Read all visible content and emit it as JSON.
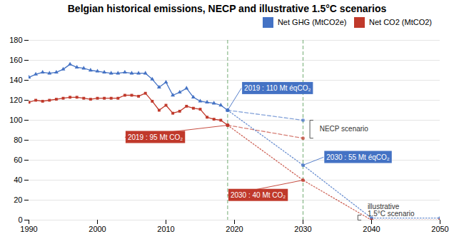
{
  "chart_data": {
    "type": "line",
    "title": "Belgian historical emissions, NECP and illustrative 1.5°C scenarios",
    "xlim": [
      1990,
      2050
    ],
    "ylim": [
      0,
      180
    ],
    "xticks": [
      1990,
      2000,
      2010,
      2020,
      2030,
      2040,
      2050
    ],
    "yticks": [
      0,
      20,
      40,
      60,
      80,
      100,
      120,
      140,
      160,
      180
    ],
    "grid": "y",
    "legend": "upper right",
    "series": [
      {
        "name": "Net GHG (MtCO2e)",
        "color": "#4472C4",
        "marker": "triangle",
        "line_style": "solid",
        "x": [
          1990,
          1991,
          1992,
          1993,
          1994,
          1995,
          1996,
          1997,
          1998,
          1999,
          2000,
          2001,
          2002,
          2003,
          2004,
          2005,
          2006,
          2007,
          2008,
          2009,
          2010,
          2011,
          2012,
          2013,
          2014,
          2015,
          2016,
          2017,
          2018,
          2019
        ],
        "values": [
          143,
          146,
          148,
          147,
          148,
          151,
          156,
          153,
          152,
          150,
          149,
          148,
          147,
          147,
          148,
          147,
          147,
          147,
          141,
          133,
          138,
          125,
          128,
          132,
          123,
          119,
          118,
          117,
          115,
          110
        ]
      },
      {
        "name": "Net CO2 (MtCO2)",
        "color": "#C0392B",
        "marker": "square",
        "line_style": "solid",
        "x": [
          1990,
          1991,
          1992,
          1993,
          1994,
          1995,
          1996,
          1997,
          1998,
          1999,
          2000,
          2001,
          2002,
          2003,
          2004,
          2005,
          2006,
          2007,
          2008,
          2009,
          2010,
          2011,
          2012,
          2013,
          2014,
          2015,
          2016,
          2017,
          2018,
          2019
        ],
        "values": [
          118,
          120,
          119,
          120,
          121,
          122,
          123,
          123,
          122,
          121,
          122,
          122,
          122,
          122,
          125,
          125,
          124,
          127,
          119,
          110,
          115,
          107,
          109,
          114,
          112,
          111,
          103,
          101,
          100,
          95
        ]
      },
      {
        "color": "#4472C4",
        "marker": "circle",
        "line_style": "dashed",
        "x": [
          2019,
          2030
        ],
        "values": [
          110,
          100
        ]
      },
      {
        "color": "#C0392B",
        "marker": "circle",
        "line_style": "dashed",
        "x": [
          2019,
          2030
        ],
        "values": [
          95,
          82
        ]
      },
      {
        "color": "#4472C4",
        "marker": "circle",
        "line_style": "dotted",
        "x": [
          2019,
          2030,
          2040,
          2050
        ],
        "values": [
          110,
          55,
          2,
          2
        ]
      },
      {
        "color": "#C0392B",
        "marker": "circle",
        "line_style": "dotted",
        "x": [
          2019,
          2030,
          2040,
          2050
        ],
        "values": [
          95,
          40,
          0,
          0
        ]
      }
    ],
    "vertical_lines": {
      "x": [
        2019,
        2030
      ],
      "color": "#5A9E5A",
      "line_style": "dashed"
    },
    "annotations": [
      {
        "text": "2019 : 110 Mt éqCO₂",
        "x": 2019,
        "y": 110,
        "text_x": 2021,
        "text_y": 132,
        "color": "#4472C4"
      },
      {
        "text": "2019 : 95 Mt CO₂",
        "x": 2019,
        "y": 95,
        "text_x": 2004,
        "text_y": 83,
        "color": "#C0392B"
      },
      {
        "text": "2030 : 55 Mt éqCO₂",
        "x": 2030,
        "y": 55,
        "text_x": 2033,
        "text_y": 63,
        "color": "#4472C4"
      },
      {
        "text": "2030 : 40 Mt CO₂",
        "x": 2030,
        "y": 40,
        "text_x": 2019,
        "text_y": 25,
        "color": "#C0392B"
      }
    ],
    "brackets": [
      {
        "text": "NECP scenario",
        "x": 2031,
        "top": 100,
        "bottom": 82,
        "text_x": 2032,
        "text_y": 91
      },
      {
        "text": "illustrative\n1.5°C scenario",
        "x": 2038,
        "top": 5,
        "bottom": 0,
        "text_x": 2039,
        "text_y": 10
      }
    ]
  }
}
